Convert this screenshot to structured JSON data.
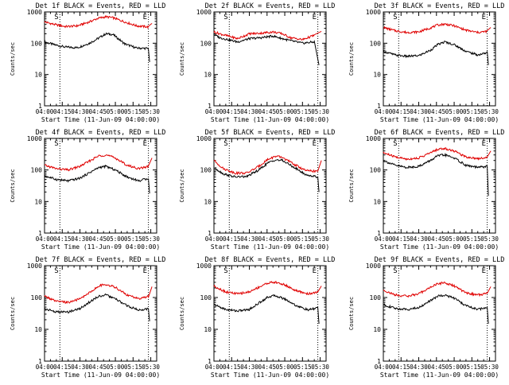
{
  "chart_data": [
    {
      "type": "line",
      "title": "Det 1f BLACK = Events, RED = LLD",
      "xlabel": "Start Time (11-Jun-09 04:00:00)",
      "ylabel": "Counts/sec",
      "y_scale": "log",
      "ylim": [
        1,
        1000
      ],
      "x_ticks": [
        "04:00",
        "04:15",
        "04:30",
        "04:45",
        "05:00",
        "05:15",
        "05:30"
      ],
      "y_ticks": [
        "1",
        "10",
        "100",
        "1000"
      ],
      "markers": [
        {
          "label": "S",
          "x": "04:13"
        },
        {
          "label": "E",
          "x": "05:28"
        }
      ],
      "series": [
        {
          "color": "#000000",
          "x": [
            "04:00",
            "04:08",
            "04:18",
            "04:28",
            "04:38",
            "04:45",
            "04:52",
            "04:58",
            "05:08",
            "05:18",
            "05:28",
            "05:29"
          ],
          "values": [
            110,
            90,
            75,
            72,
            100,
            140,
            200,
            190,
            95,
            70,
            68,
            25
          ]
        },
        {
          "color": "#e00000",
          "x": [
            "04:00",
            "04:08",
            "04:18",
            "04:28",
            "04:38",
            "04:45",
            "04:52",
            "04:58",
            "05:08",
            "05:18",
            "05:28",
            "05:31"
          ],
          "values": [
            480,
            400,
            340,
            360,
            480,
            620,
            700,
            650,
            480,
            360,
            330,
            430
          ]
        }
      ]
    },
    {
      "type": "line",
      "title": "Det 2f BLACK = Events, RED = LLD",
      "xlabel": "Start Time (11-Jun-09 04:00:00)",
      "ylabel": "Counts/sec",
      "y_scale": "log",
      "ylim": [
        1,
        1000
      ],
      "x_ticks": [
        "04:00",
        "04:15",
        "04:30",
        "04:45",
        "05:00",
        "05:15",
        "05:30"
      ],
      "y_ticks": [
        "1",
        "10",
        "100",
        "1000"
      ],
      "markers": [
        {
          "label": "S",
          "x": "04:13"
        },
        {
          "label": "E",
          "x": "05:28"
        }
      ],
      "series": [
        {
          "color": "#000000",
          "x": [
            "04:00",
            "04:05",
            "04:12",
            "04:20",
            "04:30",
            "04:40",
            "04:50",
            "04:58",
            "05:05",
            "05:15",
            "05:25",
            "05:29"
          ],
          "values": [
            190,
            150,
            130,
            110,
            140,
            150,
            170,
            140,
            120,
            100,
            110,
            20
          ]
        },
        {
          "color": "#e00000",
          "x": [
            "04:00",
            "04:05",
            "04:12",
            "04:20",
            "04:30",
            "04:40",
            "04:50",
            "04:58",
            "05:05",
            "05:15",
            "05:25",
            "05:31"
          ],
          "values": [
            230,
            200,
            170,
            140,
            200,
            210,
            230,
            200,
            150,
            130,
            180,
            240
          ]
        }
      ]
    },
    {
      "type": "line",
      "title": "Det 3f BLACK = Events, RED = LLD",
      "xlabel": "Start Time (11-Jun-09 04:00:00)",
      "ylabel": "Counts/sec",
      "y_scale": "log",
      "ylim": [
        1,
        1000
      ],
      "x_ticks": [
        "04:00",
        "04:15",
        "04:30",
        "04:45",
        "05:00",
        "05:15",
        "05:30"
      ],
      "y_ticks": [
        "1",
        "10",
        "100",
        "1000"
      ],
      "markers": [
        {
          "label": "S",
          "x": "04:13"
        },
        {
          "label": "E",
          "x": "05:28"
        }
      ],
      "series": [
        {
          "color": "#000000",
          "x": [
            "04:00",
            "04:10",
            "04:20",
            "04:30",
            "04:40",
            "04:46",
            "04:52",
            "05:00",
            "05:10",
            "05:20",
            "05:28",
            "05:29"
          ],
          "values": [
            55,
            42,
            38,
            40,
            60,
            90,
            110,
            90,
            55,
            42,
            50,
            20
          ]
        },
        {
          "color": "#e00000",
          "x": [
            "04:00",
            "04:10",
            "04:20",
            "04:30",
            "04:40",
            "04:46",
            "04:52",
            "05:00",
            "05:10",
            "05:20",
            "05:28",
            "05:31"
          ],
          "values": [
            320,
            250,
            220,
            230,
            310,
            380,
            410,
            360,
            260,
            220,
            240,
            320
          ]
        }
      ]
    },
    {
      "type": "line",
      "title": "Det 4f BLACK = Events, RED = LLD",
      "xlabel": "Start Time (11-Jun-09 04:00:00)",
      "ylabel": "Counts/sec",
      "y_scale": "log",
      "ylim": [
        1,
        1000
      ],
      "x_ticks": [
        "04:00",
        "04:15",
        "04:30",
        "04:45",
        "05:00",
        "05:15",
        "05:30"
      ],
      "y_ticks": [
        "1",
        "10",
        "100",
        "1000"
      ],
      "markers": [
        {
          "label": "S",
          "x": "04:13"
        },
        {
          "label": "E",
          "x": "05:28"
        }
      ],
      "series": [
        {
          "color": "#000000",
          "x": [
            "04:00",
            "04:10",
            "04:20",
            "04:30",
            "04:40",
            "04:46",
            "04:52",
            "05:00",
            "05:10",
            "05:20",
            "05:28",
            "05:29"
          ],
          "values": [
            65,
            50,
            45,
            55,
            90,
            120,
            130,
            100,
            60,
            45,
            55,
            18
          ]
        },
        {
          "color": "#e00000",
          "x": [
            "04:00",
            "04:10",
            "04:20",
            "04:30",
            "04:40",
            "04:46",
            "04:52",
            "05:00",
            "05:10",
            "05:20",
            "05:28",
            "05:31"
          ],
          "values": [
            140,
            110,
            100,
            130,
            210,
            280,
            300,
            240,
            140,
            110,
            130,
            240
          ]
        }
      ]
    },
    {
      "type": "line",
      "title": "Det 5f BLACK = Events, RED = LLD",
      "xlabel": "Start Time (11-Jun-09 04:00:00)",
      "ylabel": "Counts/sec",
      "y_scale": "log",
      "ylim": [
        1,
        1000
      ],
      "x_ticks": [
        "04:00",
        "04:15",
        "04:30",
        "04:45",
        "05:00",
        "05:15",
        "05:30"
      ],
      "y_ticks": [
        "1",
        "10",
        "100",
        "1000"
      ],
      "markers": [
        {
          "label": "S",
          "x": "04:13"
        },
        {
          "label": "E",
          "x": "05:28"
        }
      ],
      "series": [
        {
          "color": "#000000",
          "x": [
            "04:00",
            "04:08",
            "04:18",
            "04:28",
            "04:38",
            "04:45",
            "04:52",
            "04:58",
            "05:08",
            "05:18",
            "05:28",
            "05:29"
          ],
          "values": [
            120,
            75,
            60,
            62,
            100,
            160,
            210,
            200,
            120,
            70,
            60,
            20
          ]
        },
        {
          "color": "#e00000",
          "x": [
            "04:00",
            "04:08",
            "04:18",
            "04:28",
            "04:38",
            "04:45",
            "04:52",
            "04:58",
            "05:08",
            "05:18",
            "05:28",
            "05:31"
          ],
          "values": [
            200,
            110,
            80,
            80,
            130,
            210,
            270,
            250,
            150,
            95,
            90,
            200
          ]
        }
      ]
    },
    {
      "type": "line",
      "title": "Det 6f BLACK = Events, RED = LLD",
      "xlabel": "Start Time (11-Jun-09 04:00:00)",
      "ylabel": "Counts/sec",
      "y_scale": "log",
      "ylim": [
        1,
        1000
      ],
      "x_ticks": [
        "04:00",
        "04:15",
        "04:30",
        "04:45",
        "05:00",
        "05:15",
        "05:30"
      ],
      "y_ticks": [
        "1",
        "10",
        "100",
        "1000"
      ],
      "markers": [
        {
          "label": "S",
          "x": "04:13"
        },
        {
          "label": "E",
          "x": "05:28"
        }
      ],
      "series": [
        {
          "color": "#000000",
          "x": [
            "04:00",
            "04:10",
            "04:20",
            "04:30",
            "04:40",
            "04:46",
            "04:52",
            "05:00",
            "05:10",
            "05:20",
            "05:28",
            "05:29"
          ],
          "values": [
            200,
            140,
            120,
            130,
            200,
            280,
            300,
            240,
            140,
            120,
            130,
            15
          ]
        },
        {
          "color": "#e00000",
          "x": [
            "04:00",
            "04:10",
            "04:20",
            "04:30",
            "04:40",
            "04:46",
            "04:52",
            "05:00",
            "05:10",
            "05:20",
            "05:28",
            "05:31"
          ],
          "values": [
            350,
            260,
            220,
            240,
            350,
            450,
            480,
            400,
            260,
            230,
            250,
            400
          ]
        }
      ]
    },
    {
      "type": "line",
      "title": "Det 7f BLACK = Events, RED = LLD",
      "xlabel": "Start Time (11-Jun-09 04:00:00)",
      "ylabel": "Counts/sec",
      "y_scale": "log",
      "ylim": [
        1,
        1000
      ],
      "x_ticks": [
        "04:00",
        "04:15",
        "04:30",
        "04:45",
        "05:00",
        "05:15",
        "05:30"
      ],
      "y_ticks": [
        "1",
        "10",
        "100",
        "1000"
      ],
      "markers": [
        {
          "label": "S",
          "x": "04:13"
        },
        {
          "label": "E",
          "x": "05:28"
        }
      ],
      "series": [
        {
          "color": "#000000",
          "x": [
            "04:00",
            "04:10",
            "04:20",
            "04:30",
            "04:40",
            "04:46",
            "04:52",
            "05:00",
            "05:10",
            "05:20",
            "05:28",
            "05:29"
          ],
          "values": [
            45,
            35,
            35,
            45,
            80,
            110,
            120,
            90,
            55,
            40,
            45,
            18
          ]
        },
        {
          "color": "#e00000",
          "x": [
            "04:00",
            "04:10",
            "04:20",
            "04:30",
            "04:40",
            "04:46",
            "04:52",
            "05:00",
            "05:10",
            "05:20",
            "05:28",
            "05:31"
          ],
          "values": [
            110,
            75,
            70,
            90,
            160,
            230,
            260,
            210,
            120,
            90,
            110,
            220
          ]
        }
      ]
    },
    {
      "type": "line",
      "title": "Det 8f BLACK = Events, RED = LLD",
      "xlabel": "Start Time (11-Jun-09 04:00:00)",
      "ylabel": "Counts/sec",
      "y_scale": "log",
      "ylim": [
        1,
        1000
      ],
      "x_ticks": [
        "04:00",
        "04:15",
        "04:30",
        "04:45",
        "05:00",
        "05:15",
        "05:30"
      ],
      "y_ticks": [
        "1",
        "10",
        "100",
        "1000"
      ],
      "markers": [
        {
          "label": "S",
          "x": "04:13"
        },
        {
          "label": "E",
          "x": "05:28"
        }
      ],
      "series": [
        {
          "color": "#000000",
          "x": [
            "04:00",
            "04:10",
            "04:20",
            "04:30",
            "04:40",
            "04:46",
            "04:52",
            "05:00",
            "05:10",
            "05:20",
            "05:28",
            "05:29"
          ],
          "values": [
            60,
            42,
            38,
            42,
            75,
            105,
            115,
            90,
            55,
            40,
            48,
            15
          ]
        },
        {
          "color": "#e00000",
          "x": [
            "04:00",
            "04:10",
            "04:20",
            "04:30",
            "04:40",
            "04:46",
            "04:52",
            "05:00",
            "05:10",
            "05:20",
            "05:28",
            "05:31"
          ],
          "values": [
            230,
            150,
            130,
            150,
            230,
            290,
            300,
            250,
            160,
            130,
            150,
            230
          ]
        }
      ]
    },
    {
      "type": "line",
      "title": "Det 9f BLACK = Events, RED = LLD",
      "xlabel": "Start Time (11-Jun-09 04:00:00)",
      "ylabel": "Counts/sec",
      "y_scale": "log",
      "ylim": [
        1,
        1000
      ],
      "x_ticks": [
        "04:00",
        "04:15",
        "04:30",
        "04:45",
        "05:00",
        "05:15",
        "05:30"
      ],
      "y_ticks": [
        "1",
        "10",
        "100",
        "1000"
      ],
      "markers": [
        {
          "label": "S",
          "x": "04:13"
        },
        {
          "label": "E",
          "x": "05:28"
        }
      ],
      "series": [
        {
          "color": "#000000",
          "x": [
            "04:00",
            "04:10",
            "04:20",
            "04:30",
            "04:40",
            "04:46",
            "04:52",
            "05:00",
            "05:10",
            "05:20",
            "05:28",
            "05:29"
          ],
          "values": [
            60,
            45,
            42,
            48,
            80,
            110,
            120,
            95,
            55,
            42,
            48,
            15
          ]
        },
        {
          "color": "#e00000",
          "x": [
            "04:00",
            "04:10",
            "04:20",
            "04:30",
            "04:40",
            "04:46",
            "04:52",
            "05:00",
            "05:10",
            "05:20",
            "05:28",
            "05:31"
          ],
          "values": [
            170,
            120,
            110,
            130,
            210,
            270,
            290,
            230,
            140,
            120,
            135,
            220
          ]
        }
      ]
    }
  ]
}
